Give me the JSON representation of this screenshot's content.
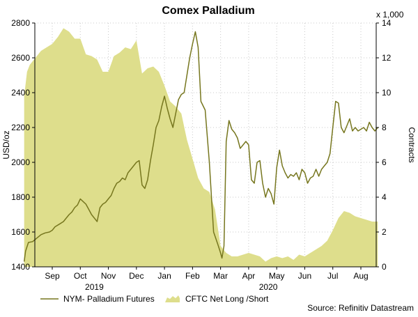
{
  "chart_data": {
    "type": "line",
    "title": "Comex Palladium",
    "ylabel_left": "USD/oz",
    "ylabel_right": "Contracts",
    "right_axis_multiplier": "x 1,000",
    "ylim_left": [
      1400,
      2800
    ],
    "ylim_right": [
      0,
      14
    ],
    "yticks_left": [
      1400,
      1600,
      1800,
      2000,
      2200,
      2400,
      2600,
      2800
    ],
    "yticks_right": [
      0,
      2,
      4,
      6,
      8,
      10,
      12,
      14
    ],
    "x_range_months": [
      8.0,
      19.0
    ],
    "month_ticks": [
      {
        "label": "Sep",
        "pos": 9.0
      },
      {
        "label": "Oct",
        "pos": 10.0
      },
      {
        "label": "Nov",
        "pos": 11.0
      },
      {
        "label": "Dec",
        "pos": 12.0
      },
      {
        "label": "Jan",
        "pos": 13.0
      },
      {
        "label": "Feb",
        "pos": 14.0
      },
      {
        "label": "Mar",
        "pos": 15.0
      },
      {
        "label": "Apr",
        "pos": 16.0
      },
      {
        "label": "May",
        "pos": 17.0
      },
      {
        "label": "Jun",
        "pos": 18.0
      },
      {
        "label": "Jul",
        "pos": 19.0
      },
      {
        "label": "Aug",
        "pos": 20.0
      }
    ],
    "year_labels": [
      {
        "label": "2019",
        "pos": 10.5
      },
      {
        "label": "2020",
        "pos": 16.7
      }
    ],
    "grid": true,
    "legend_position": "bottom",
    "source": "Source: Refinitiv Datastream",
    "series": [
      {
        "name": "NYM- Palladium Futures",
        "axis": "left",
        "kind": "line",
        "color": "#76761e",
        "x": [
          8.0,
          8.05,
          8.15,
          8.3,
          8.45,
          8.6,
          8.75,
          8.9,
          9.0,
          9.1,
          9.25,
          9.4,
          9.5,
          9.6,
          9.7,
          9.8,
          9.9,
          10.0,
          10.1,
          10.2,
          10.3,
          10.4,
          10.5,
          10.6,
          10.7,
          10.8,
          10.9,
          11.0,
          11.1,
          11.2,
          11.3,
          11.4,
          11.5,
          11.6,
          11.7,
          11.8,
          11.9,
          12.0,
          12.1,
          12.2,
          12.3,
          12.4,
          12.5,
          12.6,
          12.7,
          12.8,
          12.9,
          13.0,
          13.1,
          13.2,
          13.3,
          13.4,
          13.5,
          13.6,
          13.7,
          13.8,
          13.9,
          14.0,
          14.1,
          14.2,
          14.3,
          14.45,
          14.6,
          14.75,
          14.9,
          15.0,
          15.05,
          15.12,
          15.2,
          15.3,
          15.4,
          15.5,
          15.6,
          15.7,
          15.8,
          15.9,
          16.0,
          16.1,
          16.2,
          16.3,
          16.4,
          16.5,
          16.6,
          16.7,
          16.8,
          16.9,
          17.0,
          17.1,
          17.2,
          17.3,
          17.4,
          17.5,
          17.6,
          17.7,
          17.8,
          17.9,
          18.0,
          18.1,
          18.2,
          18.3,
          18.4,
          18.5,
          18.6,
          18.7,
          18.8,
          18.9,
          19.0,
          19.1,
          19.2,
          19.3,
          19.4,
          19.5,
          19.6,
          19.7,
          19.8,
          19.9,
          20.0,
          20.1,
          20.2,
          20.3,
          20.4,
          20.5,
          20.6
        ],
        "y": [
          1430,
          1490,
          1540,
          1545,
          1565,
          1585,
          1595,
          1600,
          1610,
          1630,
          1645,
          1660,
          1680,
          1700,
          1715,
          1740,
          1755,
          1790,
          1775,
          1760,
          1730,
          1700,
          1680,
          1660,
          1740,
          1760,
          1770,
          1790,
          1810,
          1850,
          1880,
          1890,
          1910,
          1900,
          1940,
          1960,
          1980,
          2000,
          2010,
          1870,
          1850,
          1900,
          2010,
          2100,
          2200,
          2240,
          2320,
          2380,
          2310,
          2250,
          2200,
          2280,
          2360,
          2390,
          2400,
          2500,
          2600,
          2680,
          2750,
          2660,
          2350,
          2300,
          2000,
          1600,
          1530,
          1480,
          1450,
          1520,
          2120,
          2240,
          2190,
          2170,
          2140,
          2080,
          2100,
          2120,
          2100,
          1900,
          1880,
          2000,
          2010,
          1880,
          1800,
          1850,
          1820,
          1760,
          1970,
          2070,
          1980,
          1940,
          1910,
          1930,
          1920,
          1940,
          1900,
          1960,
          1940,
          1880,
          1910,
          1920,
          1960,
          1920,
          1960,
          1980,
          2000,
          2050,
          2200,
          2350,
          2340,
          2200,
          2170,
          2210,
          2250,
          2180,
          2200,
          2180,
          2190,
          2200,
          2180,
          2230,
          2200,
          2180,
          2200
        ]
      },
      {
        "name": "CFTC Net Long /Short",
        "axis": "right",
        "kind": "area",
        "color": "#dede8c",
        "x": [
          8.0,
          8.1,
          8.2,
          8.4,
          8.6,
          8.8,
          9.0,
          9.2,
          9.4,
          9.6,
          9.8,
          10.0,
          10.2,
          10.4,
          10.6,
          10.8,
          11.0,
          11.2,
          11.4,
          11.6,
          11.8,
          12.0,
          12.2,
          12.4,
          12.6,
          12.8,
          13.0,
          13.2,
          13.4,
          13.6,
          13.8,
          14.0,
          14.2,
          14.4,
          14.6,
          14.8,
          15.0,
          15.2,
          15.4,
          15.6,
          15.8,
          16.0,
          16.2,
          16.4,
          16.6,
          16.8,
          17.0,
          17.2,
          17.4,
          17.6,
          17.8,
          18.0,
          18.2,
          18.4,
          18.6,
          18.8,
          19.0,
          19.2,
          19.4,
          19.6,
          19.8,
          20.0,
          20.2,
          20.4,
          20.6
        ],
        "y": [
          9.8,
          11.2,
          11.6,
          12.0,
          12.4,
          12.6,
          12.8,
          13.2,
          13.7,
          13.5,
          13.1,
          13.1,
          12.2,
          12.1,
          11.9,
          11.2,
          11.2,
          12.1,
          12.3,
          12.6,
          12.5,
          13.0,
          11.1,
          11.4,
          11.5,
          11.2,
          10.4,
          9.5,
          9.2,
          8.8,
          7.3,
          6.2,
          5.1,
          4.5,
          4.3,
          3.3,
          1.2,
          0.8,
          0.6,
          0.6,
          0.7,
          0.8,
          0.7,
          0.6,
          0.3,
          0.5,
          0.6,
          0.5,
          0.6,
          0.4,
          0.7,
          0.6,
          0.8,
          1.0,
          1.2,
          1.5,
          2.1,
          2.8,
          3.2,
          3.1,
          2.9,
          2.8,
          2.7,
          2.6,
          2.6
        ]
      }
    ]
  }
}
